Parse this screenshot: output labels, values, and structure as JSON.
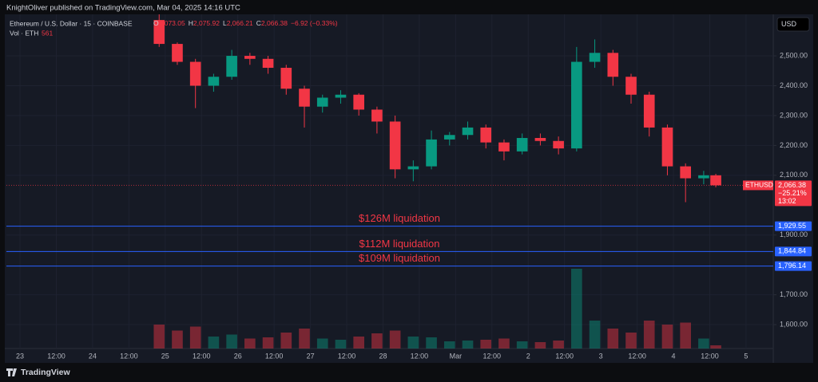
{
  "header": {
    "published": "KnightOliver published on TradingView.com, Mar 04, 2025 14:16 UTC"
  },
  "footer": {
    "brand": "TradingView"
  },
  "chart_data": {
    "type": "candlestick",
    "symbol": "Ethereum / U.S. Dollar · 15 · COINBASE",
    "ohlc_legend": [
      {
        "key": "O",
        "value": "2,073.05"
      },
      {
        "key": "H",
        "value": "2,075.92"
      },
      {
        "key": "L",
        "value": "2,066.21"
      },
      {
        "key": "C",
        "value": "2,066.38"
      }
    ],
    "change": "−6.92 (−0.33%)",
    "volume_legend": {
      "label": "Vol · ETH",
      "value": "561"
    },
    "currency": "USD",
    "x": [
      46,
      52,
      58,
      64,
      70,
      76,
      82,
      88,
      94,
      100,
      106,
      112,
      118,
      124,
      130,
      136,
      142,
      148,
      154,
      160,
      166,
      172,
      178,
      184,
      190,
      196,
      202,
      208,
      214,
      220,
      226,
      230
    ],
    "open": [
      2620,
      2540,
      2480,
      2400,
      2430,
      2500,
      2490,
      2460,
      2390,
      2330,
      2360,
      2370,
      2320,
      2280,
      2120,
      2130,
      2220,
      2235,
      2260,
      2210,
      2180,
      2225,
      2215,
      2190,
      2480,
      2510,
      2430,
      2370,
      2260,
      2130,
      2090,
      2100
    ],
    "high": [
      2639,
      2545,
      2490,
      2440,
      2520,
      2510,
      2500,
      2470,
      2400,
      2370,
      2385,
      2375,
      2330,
      2300,
      2150,
      2250,
      2245,
      2280,
      2270,
      2220,
      2240,
      2240,
      2230,
      2530,
      2555,
      2520,
      2440,
      2380,
      2270,
      2140,
      2115,
      2105
    ],
    "low": [
      2530,
      2470,
      2325,
      2380,
      2420,
      2470,
      2440,
      2370,
      2260,
      2310,
      2340,
      2300,
      2240,
      2090,
      2080,
      2120,
      2200,
      2220,
      2190,
      2150,
      2170,
      2200,
      2170,
      2180,
      2460,
      2400,
      2340,
      2230,
      2100,
      2010,
      2070,
      2060
    ],
    "close": [
      2540,
      2480,
      2400,
      2430,
      2500,
      2490,
      2460,
      2390,
      2330,
      2360,
      2370,
      2320,
      2280,
      2120,
      2130,
      2220,
      2235,
      2260,
      2210,
      2180,
      2225,
      2215,
      2190,
      2480,
      2510,
      2430,
      2370,
      2260,
      2130,
      2090,
      2100,
      2066.38
    ],
    "volume": [
      60000,
      45000,
      55000,
      30000,
      35000,
      25000,
      28000,
      40000,
      50000,
      25000,
      22000,
      30000,
      38000,
      45000,
      30000,
      28000,
      18000,
      20000,
      22000,
      25000,
      18000,
      16000,
      20000,
      200000,
      70000,
      50000,
      40000,
      70000,
      60000,
      65000,
      25000,
      8000
    ],
    "up_color": "#089981",
    "down_color": "#f23645",
    "xlim": [
      -4.5,
      249
    ],
    "xticks": [
      {
        "value": 0,
        "label": "23"
      },
      {
        "value": 12,
        "label": "12:00"
      },
      {
        "value": 24,
        "label": "24"
      },
      {
        "value": 36,
        "label": "12:00"
      },
      {
        "value": 48,
        "label": "25"
      },
      {
        "value": 60,
        "label": "12:00"
      },
      {
        "value": 72,
        "label": "26"
      },
      {
        "value": 84,
        "label": "12:00"
      },
      {
        "value": 96,
        "label": "27"
      },
      {
        "value": 108,
        "label": "12:00"
      },
      {
        "value": 120,
        "label": "28"
      },
      {
        "value": 132,
        "label": "12:00"
      },
      {
        "value": 144,
        "label": "Mar"
      },
      {
        "value": 156,
        "label": "12:00"
      },
      {
        "value": 168,
        "label": "2"
      },
      {
        "value": 180,
        "label": "12:00"
      },
      {
        "value": 192,
        "label": "3"
      },
      {
        "value": 204,
        "label": "12:00"
      },
      {
        "value": 216,
        "label": "4"
      },
      {
        "value": 228,
        "label": "12:00"
      },
      {
        "value": 240,
        "label": "5"
      }
    ],
    "ylim": [
      1520,
      2639
    ],
    "yticks": [
      {
        "value": 1600,
        "label": "1,600.00"
      },
      {
        "value": 1700,
        "label": "1,700.00"
      },
      {
        "value": 1900,
        "label": "1,900.00"
      },
      {
        "value": 2100,
        "label": "2,100.00"
      },
      {
        "value": 2200,
        "label": "2,200.00"
      },
      {
        "value": 2300,
        "label": "2,300.00"
      },
      {
        "value": 2400,
        "label": "2,400.00"
      },
      {
        "value": 2500,
        "label": "2,500.00"
      }
    ],
    "grid": true,
    "last_price": {
      "symbol": "ETHUSD",
      "value": 2066.38,
      "label": "2,066.38",
      "change": "−25.21%",
      "countdown": "13:02"
    },
    "levels": [
      {
        "value": 1929.55,
        "label": "1,929.55",
        "annotation": "$126M liquidation"
      },
      {
        "value": 1844.84,
        "label": "1,844.84",
        "annotation": "$112M liquidation"
      },
      {
        "value": 1796.14,
        "label": "1,796.14",
        "annotation": "$109M liquidation"
      }
    ],
    "level_color": "#2962ff",
    "annotation_color": "#f23645"
  }
}
